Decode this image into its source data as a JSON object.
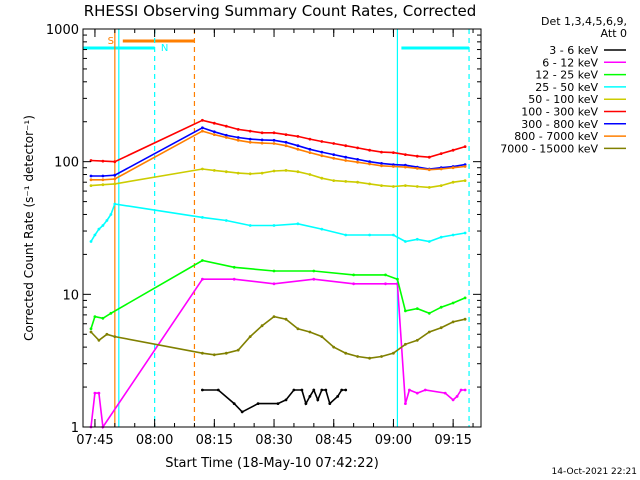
{
  "chart_data": {
    "type": "line",
    "title": "RHESSI Observing Summary Count Rates, Corrected",
    "xlabel": "Start Time (18-May-10 07:42:22)",
    "ylabel": "Corrected Count Rate (s⁻¹ detector⁻¹)",
    "ylim": [
      1,
      1000
    ],
    "xlim": [
      "07:42",
      "09:22"
    ],
    "y_scale": "log",
    "x_ticks": [
      "07:45",
      "08:00",
      "08:15",
      "08:30",
      "08:45",
      "09:00",
      "09:15"
    ],
    "y_ticks": [
      "1",
      "10",
      "100",
      "1000"
    ],
    "stamp": "14-Oct-2021 22:21",
    "legend_header": [
      "Det 1,3,4,5,6,9,",
      "Att 0"
    ],
    "legend_placement": "right",
    "series": [
      {
        "name": "3 - 6 keV",
        "color": "#000000",
        "x": [
          "08:12",
          "08:16",
          "08:20",
          "08:22",
          "08:26",
          "08:31",
          "08:33",
          "08:35",
          "08:37",
          "08:38",
          "08:39",
          "08:40",
          "08:41",
          "08:42",
          "08:43",
          "08:44",
          "08:46",
          "08:47",
          "08:48"
        ],
        "values": [
          1.9,
          1.9,
          1.5,
          1.3,
          1.5,
          1.5,
          1.6,
          1.9,
          1.9,
          1.5,
          1.7,
          1.9,
          1.6,
          1.9,
          1.9,
          1.5,
          1.7,
          1.9,
          1.9
        ]
      },
      {
        "name": "6 - 12 keV",
        "color": "#ff00ff",
        "x": [
          "07:44",
          "07:45",
          "07:46",
          "07:47",
          "08:12",
          "08:20",
          "08:30",
          "08:40",
          "08:50",
          "08:58",
          "09:01",
          "09:03",
          "09:04",
          "09:06",
          "09:08",
          "09:13",
          "09:15",
          "09:16",
          "09:17",
          "09:18"
        ],
        "values": [
          1,
          1.8,
          1.8,
          1,
          13,
          13,
          12,
          13,
          12,
          12,
          12,
          1.5,
          1.9,
          1.8,
          1.9,
          1.8,
          1.6,
          1.7,
          1.9,
          1.9
        ]
      },
      {
        "name": "12 - 25 keV",
        "color": "#00ff00",
        "x": [
          "07:44",
          "07:45",
          "07:47",
          "07:49",
          "08:12",
          "08:20",
          "08:30",
          "08:40",
          "08:50",
          "08:58",
          "09:01",
          "09:03",
          "09:06",
          "09:09",
          "09:12",
          "09:15",
          "09:18"
        ],
        "values": [
          5.5,
          6.8,
          6.6,
          7.2,
          18,
          16,
          15,
          15,
          14,
          14,
          13,
          7.5,
          7.8,
          7.2,
          8.0,
          8.6,
          9.4
        ]
      },
      {
        "name": "25 - 50 keV",
        "color": "#00ffff",
        "x": [
          "07:44",
          "07:45",
          "07:46",
          "07:47",
          "07:48",
          "07:49",
          "07:50",
          "08:12",
          "08:18",
          "08:24",
          "08:30",
          "08:36",
          "08:42",
          "08:48",
          "08:54",
          "09:00",
          "09:03",
          "09:06",
          "09:09",
          "09:12",
          "09:15",
          "09:18"
        ],
        "values": [
          25,
          28,
          31,
          33,
          36,
          40,
          48,
          38,
          36,
          33,
          33,
          34,
          31,
          28,
          28,
          28,
          25,
          26,
          25,
          27,
          28,
          29
        ]
      },
      {
        "name": "50 - 100 keV",
        "color": "#cccc00",
        "x": [
          "07:44",
          "07:47",
          "07:50",
          "08:12",
          "08:15",
          "08:18",
          "08:21",
          "08:24",
          "08:27",
          "08:30",
          "08:33",
          "08:36",
          "08:39",
          "08:42",
          "08:45",
          "08:48",
          "08:51",
          "08:54",
          "08:57",
          "09:00",
          "09:03",
          "09:06",
          "09:09",
          "09:12",
          "09:15",
          "09:18"
        ],
        "values": [
          66,
          67,
          68,
          88,
          86,
          84,
          82,
          81,
          82,
          85,
          86,
          84,
          80,
          75,
          72,
          71,
          70,
          68,
          66,
          65,
          66,
          65,
          64,
          66,
          70,
          72
        ]
      },
      {
        "name": "100 - 300 keV",
        "color": "#ff0000",
        "x": [
          "07:44",
          "07:47",
          "07:50",
          "08:12",
          "08:15",
          "08:18",
          "08:21",
          "08:24",
          "08:27",
          "08:30",
          "08:33",
          "08:36",
          "08:39",
          "08:42",
          "08:45",
          "08:48",
          "08:51",
          "08:54",
          "08:57",
          "09:00",
          "09:03",
          "09:06",
          "09:09",
          "09:12",
          "09:15",
          "09:18"
        ],
        "values": [
          102,
          101,
          100,
          205,
          195,
          185,
          175,
          170,
          165,
          165,
          160,
          155,
          148,
          142,
          137,
          132,
          127,
          122,
          118,
          117,
          113,
          110,
          108,
          115,
          122,
          130
        ]
      },
      {
        "name": "300 - 800 keV",
        "color": "#0000ff",
        "x": [
          "07:44",
          "07:47",
          "07:50",
          "08:12",
          "08:15",
          "08:18",
          "08:21",
          "08:24",
          "08:27",
          "08:30",
          "08:33",
          "08:36",
          "08:39",
          "08:42",
          "08:45",
          "08:48",
          "08:51",
          "08:54",
          "08:57",
          "09:00",
          "09:03",
          "09:06",
          "09:09",
          "09:12",
          "09:15",
          "09:18"
        ],
        "values": [
          78,
          78,
          79,
          180,
          168,
          158,
          152,
          148,
          146,
          145,
          140,
          132,
          124,
          118,
          113,
          108,
          104,
          100,
          97,
          95,
          94,
          91,
          88,
          90,
          92,
          95
        ]
      },
      {
        "name": "800 - 7000 keV",
        "color": "#ff7f00",
        "x": [
          "07:44",
          "07:47",
          "07:50",
          "08:12",
          "08:15",
          "08:18",
          "08:21",
          "08:24",
          "08:27",
          "08:30",
          "08:33",
          "08:36",
          "08:39",
          "08:42",
          "08:45",
          "08:48",
          "08:51",
          "08:54",
          "08:57",
          "09:00",
          "09:03",
          "09:06",
          "09:09",
          "09:12",
          "09:15",
          "09:18"
        ],
        "values": [
          73,
          73,
          74,
          170,
          160,
          152,
          145,
          140,
          138,
          137,
          132,
          124,
          117,
          111,
          106,
          102,
          99,
          96,
          93,
          92,
          91,
          89,
          87,
          88,
          90,
          92
        ]
      },
      {
        "name": "7000 - 15000 keV",
        "color": "#808000",
        "x": [
          "07:44",
          "07:46",
          "07:48",
          "07:50",
          "08:12",
          "08:15",
          "08:18",
          "08:21",
          "08:24",
          "08:27",
          "08:30",
          "08:33",
          "08:36",
          "08:39",
          "08:42",
          "08:45",
          "08:48",
          "08:51",
          "08:54",
          "08:57",
          "09:00",
          "09:03",
          "09:06",
          "09:09",
          "09:12",
          "09:15",
          "09:18"
        ],
        "values": [
          5.2,
          4.5,
          5.0,
          4.8,
          3.6,
          3.5,
          3.6,
          3.8,
          4.8,
          5.8,
          6.8,
          6.5,
          5.5,
          5.2,
          4.8,
          4.0,
          3.6,
          3.4,
          3.3,
          3.4,
          3.6,
          4.2,
          4.5,
          5.2,
          5.6,
          6.2,
          6.5
        ]
      }
    ],
    "annotations": [
      {
        "label": "S",
        "color": "#ff7f00",
        "from": "07:52",
        "to": "08:10"
      },
      {
        "label": "N",
        "color": "#00ffff",
        "from": "07:42",
        "to": "08:00"
      },
      {
        "label": "",
        "color": "#00ffff",
        "from": "09:02",
        "to": "09:19"
      }
    ],
    "vlines": [
      {
        "x": "07:50",
        "color": "#ff7f00",
        "style": "solid"
      },
      {
        "x": "07:51",
        "color": "#00ffff",
        "style": "solid"
      },
      {
        "x": "08:00",
        "color": "#00ffff",
        "style": "dashed"
      },
      {
        "x": "08:10",
        "color": "#ff7f00",
        "style": "dashed"
      },
      {
        "x": "09:01",
        "color": "#00ffff",
        "style": "solid"
      },
      {
        "x": "09:19",
        "color": "#00ffff",
        "style": "dashed"
      }
    ]
  }
}
